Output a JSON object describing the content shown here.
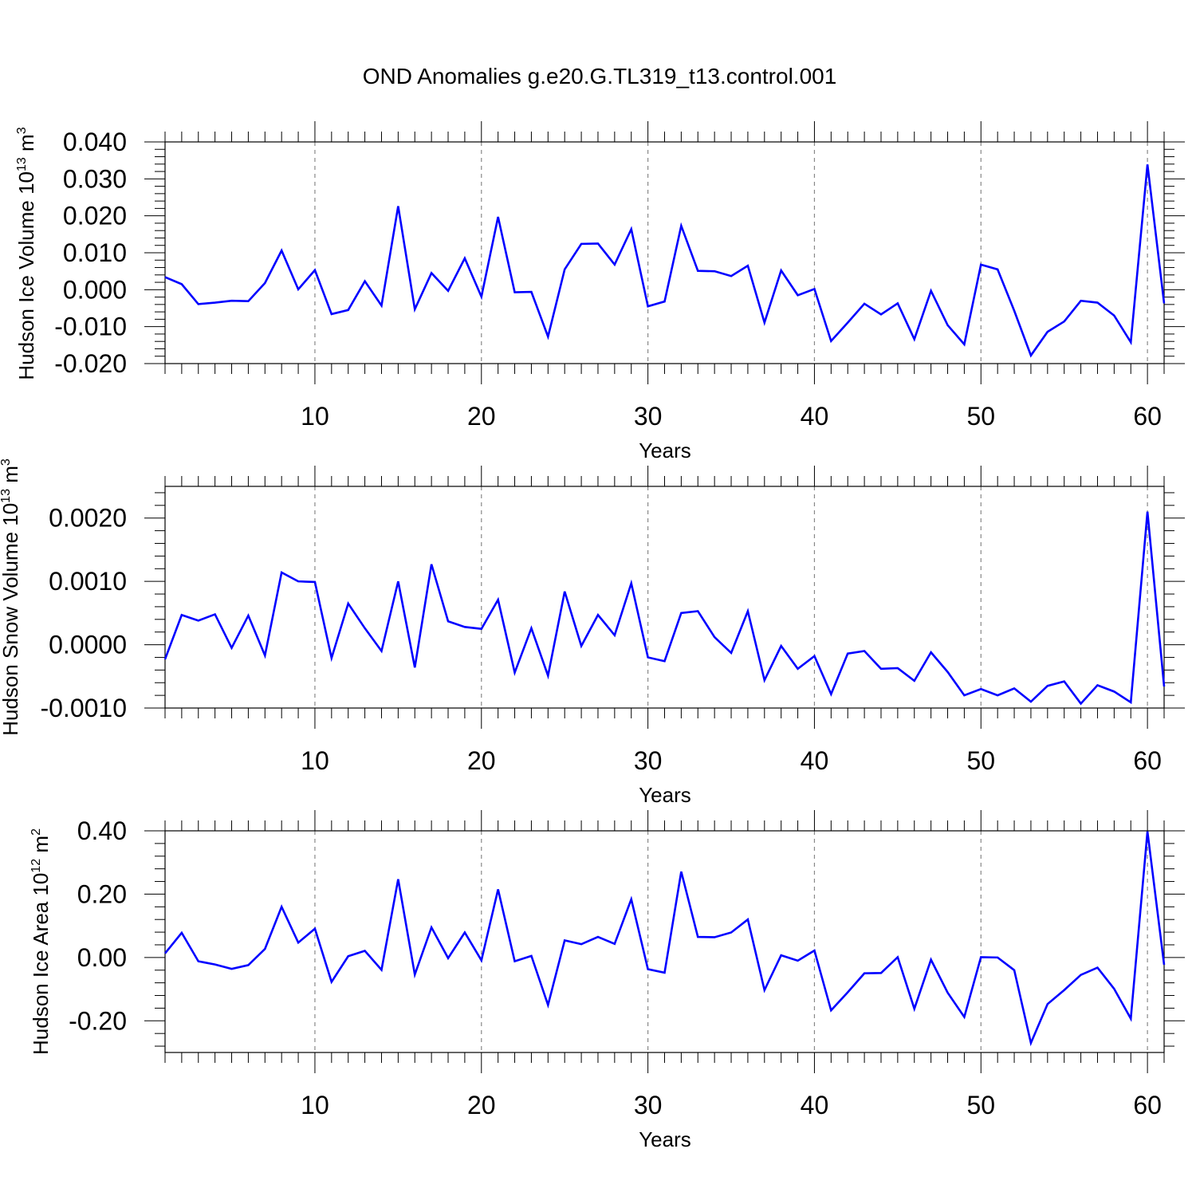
{
  "figure": {
    "title": "OND Anomalies g.e20.G.TL319_t13.control.001",
    "line_color": "#0000ff",
    "grid_color": "#888888"
  },
  "chart_data": [
    {
      "type": "line",
      "ylabel": "Hudson Ice Volume 10",
      "ylabel_exponent": "13",
      "ylabel_unit": " m",
      "ylabel_unit_exponent": "3",
      "xlabel": "Years",
      "xlim": [
        1,
        61
      ],
      "ylim": [
        -0.02,
        0.04
      ],
      "yticks": [
        -0.02,
        -0.01,
        0.0,
        0.01,
        0.02,
        0.03,
        0.04
      ],
      "ytick_labels": [
        "-0.020",
        "-0.010",
        "0.000",
        "0.010",
        "0.020",
        "0.030",
        "0.040"
      ],
      "yminor_step": 0.002,
      "xticks": [
        10,
        20,
        30,
        40,
        50,
        60
      ],
      "xtick_labels": [
        "10",
        "20",
        "30",
        "40",
        "50",
        "60"
      ],
      "grid": "vertical-dashed",
      "series": [
        {
          "name": "Hudson Ice Volume",
          "x": [
            1,
            2,
            3,
            4,
            5,
            6,
            7,
            8,
            9,
            10,
            11,
            12,
            13,
            14,
            15,
            16,
            17,
            18,
            19,
            20,
            21,
            22,
            23,
            24,
            25,
            26,
            27,
            28,
            29,
            30,
            31,
            32,
            33,
            34,
            35,
            36,
            37,
            38,
            39,
            40,
            41,
            42,
            43,
            44,
            45,
            46,
            47,
            48,
            49,
            50,
            51,
            52,
            53,
            54,
            55,
            56,
            57,
            58,
            59,
            60,
            61
          ],
          "values": [
            0.0034,
            0.0015,
            -0.0039,
            -0.0035,
            -0.003,
            -0.0031,
            0.0018,
            0.0106,
            0.0001,
            0.0053,
            -0.0066,
            -0.0055,
            0.0023,
            -0.0043,
            0.0226,
            -0.0053,
            0.0045,
            -0.0003,
            0.0085,
            -0.0019,
            0.0197,
            -0.0007,
            -0.0006,
            -0.0127,
            0.0055,
            0.0124,
            0.0125,
            0.0068,
            0.0164,
            -0.0045,
            -0.0032,
            0.0173,
            0.0051,
            0.005,
            0.0037,
            0.0065,
            -0.0089,
            0.0052,
            -0.0015,
            0.0002,
            -0.0139,
            -0.0089,
            -0.0038,
            -0.0067,
            -0.0037,
            -0.0134,
            -0.0003,
            -0.0096,
            -0.0148,
            0.0068,
            0.0055,
            -0.0057,
            -0.0178,
            -0.0114,
            -0.0086,
            -0.003,
            -0.0035,
            -0.007,
            -0.0142,
            0.0339,
            -0.0037
          ]
        }
      ]
    },
    {
      "type": "line",
      "ylabel": "Hudson Snow Volume 10",
      "ylabel_exponent": "13",
      "ylabel_unit": " m",
      "ylabel_unit_exponent": "3",
      "xlabel": "Years",
      "xlim": [
        1,
        61
      ],
      "ylim": [
        -0.001,
        0.0025
      ],
      "yticks": [
        -0.001,
        0.0,
        0.001,
        0.002
      ],
      "ytick_labels": [
        "-0.0010",
        "0.0000",
        "0.0010",
        "0.0020"
      ],
      "yminor_step": 0.0002,
      "xticks": [
        10,
        20,
        30,
        40,
        50,
        60
      ],
      "xtick_labels": [
        "10",
        "20",
        "30",
        "40",
        "50",
        "60"
      ],
      "grid": "vertical-dashed",
      "series": [
        {
          "name": "Hudson Snow Volume",
          "x": [
            1,
            2,
            3,
            4,
            5,
            6,
            7,
            8,
            9,
            10,
            11,
            12,
            13,
            14,
            15,
            16,
            17,
            18,
            19,
            20,
            21,
            22,
            23,
            24,
            25,
            26,
            27,
            28,
            29,
            30,
            31,
            32,
            33,
            34,
            35,
            36,
            37,
            38,
            39,
            40,
            41,
            42,
            43,
            44,
            45,
            46,
            47,
            48,
            49,
            50,
            51,
            52,
            53,
            54,
            55,
            56,
            57,
            58,
            59,
            60,
            61
          ],
          "values": [
            -0.00023,
            0.00047,
            0.00038,
            0.00048,
            -5e-05,
            0.00046,
            -0.00017,
            0.00114,
            0.001,
            0.00099,
            -0.00021,
            0.00065,
            0.00026,
            -0.0001,
            0.001,
            -0.00036,
            0.00127,
            0.00037,
            0.00028,
            0.00025,
            0.00071,
            -0.00044,
            0.00026,
            -0.00049,
            0.00084,
            -2e-05,
            0.00047,
            0.00015,
            0.00097,
            -0.0002,
            -0.00026,
            0.0005,
            0.00053,
            0.00012,
            -0.00013,
            0.00053,
            -0.00056,
            -2e-05,
            -0.00038,
            -0.00018,
            -0.00078,
            -0.00014,
            -0.0001,
            -0.00038,
            -0.00037,
            -0.00057,
            -0.00012,
            -0.00043,
            -0.0008,
            -0.0007,
            -0.0008,
            -0.00069,
            -0.0009,
            -0.00065,
            -0.00058,
            -0.00093,
            -0.00064,
            -0.00074,
            -0.00091,
            0.0021,
            -0.00066
          ]
        }
      ]
    },
    {
      "type": "line",
      "ylabel": "Hudson Ice Area 10",
      "ylabel_exponent": "12",
      "ylabel_unit": " m",
      "ylabel_unit_exponent": "2",
      "xlabel": "Years",
      "xlim": [
        1,
        61
      ],
      "ylim": [
        -0.3,
        0.4
      ],
      "yticks": [
        -0.2,
        0.0,
        0.2,
        0.4
      ],
      "ytick_labels": [
        "-0.20",
        "0.00",
        "0.20",
        "0.40"
      ],
      "yminor_step": 0.04,
      "xticks": [
        10,
        20,
        30,
        40,
        50,
        60
      ],
      "xtick_labels": [
        "10",
        "20",
        "30",
        "40",
        "50",
        "60"
      ],
      "grid": "vertical-dashed",
      "series": [
        {
          "name": "Hudson Ice Area",
          "x": [
            1,
            2,
            3,
            4,
            5,
            6,
            7,
            8,
            9,
            10,
            11,
            12,
            13,
            14,
            15,
            16,
            17,
            18,
            19,
            20,
            21,
            22,
            23,
            24,
            25,
            26,
            27,
            28,
            29,
            30,
            31,
            32,
            33,
            34,
            35,
            36,
            37,
            38,
            39,
            40,
            41,
            42,
            43,
            44,
            45,
            46,
            47,
            48,
            49,
            50,
            51,
            52,
            53,
            54,
            55,
            56,
            57,
            58,
            59,
            60,
            61
          ],
          "values": [
            0.013,
            0.078,
            -0.012,
            -0.022,
            -0.036,
            -0.024,
            0.027,
            0.16,
            0.047,
            0.091,
            -0.077,
            0.004,
            0.021,
            -0.039,
            0.247,
            -0.054,
            0.095,
            -0.002,
            0.079,
            -0.009,
            0.215,
            -0.012,
            0.005,
            -0.15,
            0.054,
            0.042,
            0.065,
            0.043,
            0.184,
            -0.037,
            -0.048,
            0.271,
            0.065,
            0.064,
            0.079,
            0.12,
            -0.103,
            0.007,
            -0.01,
            0.022,
            -0.167,
            -0.11,
            -0.05,
            -0.049,
            0.001,
            -0.162,
            -0.007,
            -0.111,
            -0.188,
            0.001,
            0.0,
            -0.04,
            -0.27,
            -0.147,
            -0.103,
            -0.055,
            -0.032,
            -0.099,
            -0.193,
            0.398,
            -0.023
          ]
        }
      ]
    }
  ]
}
